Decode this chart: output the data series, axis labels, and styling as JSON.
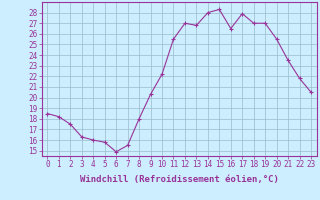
{
  "hours": [
    0,
    1,
    2,
    3,
    4,
    5,
    6,
    7,
    8,
    9,
    10,
    11,
    12,
    13,
    14,
    15,
    16,
    17,
    18,
    19,
    20,
    21,
    22,
    23
  ],
  "values": [
    18.5,
    18.2,
    17.5,
    16.3,
    16.0,
    15.8,
    14.9,
    15.5,
    18.0,
    20.3,
    22.2,
    25.5,
    27.0,
    26.8,
    28.0,
    28.3,
    26.5,
    27.9,
    27.0,
    27.0,
    25.5,
    23.5,
    21.8,
    20.5
  ],
  "line_color": "#993399",
  "marker": "+",
  "marker_size": 3.0,
  "bg_color": "#cceeff",
  "grid_color": "#99bbcc",
  "xlabel": "Windchill (Refroidissement éolien,°C)",
  "xlim": [
    -0.5,
    23.5
  ],
  "ylim": [
    14.5,
    29.0
  ],
  "yticks": [
    15,
    16,
    17,
    18,
    19,
    20,
    21,
    22,
    23,
    24,
    25,
    26,
    27,
    28
  ],
  "xticks": [
    0,
    1,
    2,
    3,
    4,
    5,
    6,
    7,
    8,
    9,
    10,
    11,
    12,
    13,
    14,
    15,
    16,
    17,
    18,
    19,
    20,
    21,
    22,
    23
  ],
  "tick_label_fontsize": 5.5,
  "xlabel_fontsize": 6.5,
  "line_width": 0.8,
  "marker_color": "#993399"
}
